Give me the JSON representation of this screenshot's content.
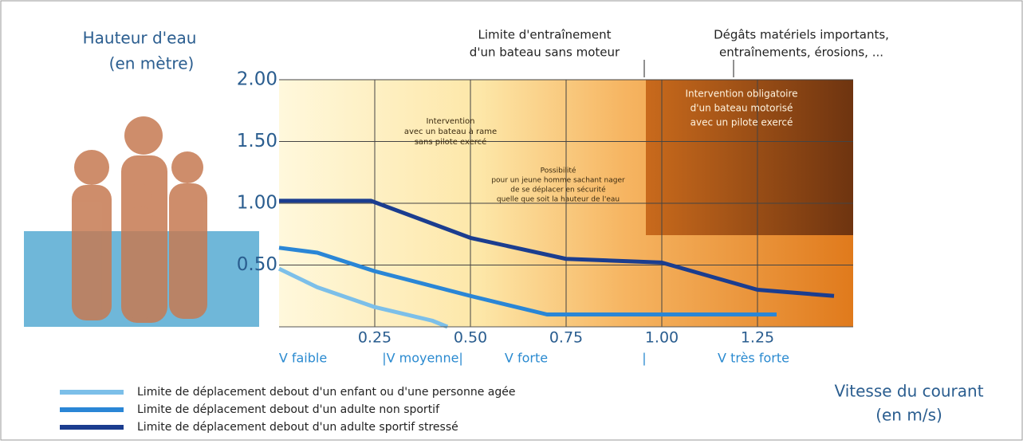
{
  "chart_data": {
    "type": "line",
    "y_label_lines": [
      "Hauteur d'eau",
      "(en mètre)"
    ],
    "x_label_lines": [
      "Vitesse du courant",
      "(en m/s)"
    ],
    "annotations": {
      "boat_limit": [
        "Limite d'entraînement",
        "d'un bateau sans moteur"
      ],
      "damage": [
        "Dégâts matériels importants,",
        "entraînements, érosions, ..."
      ],
      "rowboat": [
        "Intervention",
        "avec un bateau à rame",
        "sans pilote exercé"
      ],
      "swimmer": [
        "Possibilité",
        "pour un jeune homme sachant nager",
        "de se déplacer en sécurité",
        "quelle que soit la hauteur de l'eau"
      ],
      "motorboat": [
        "Intervention obligatoire",
        "d'un bateau motorisé",
        "avec un pilote exercé"
      ]
    },
    "speed_zones": [
      "V faible",
      "|V moyenne|",
      "V forte",
      "|",
      "V très forte"
    ],
    "xlim": [
      0,
      1.5
    ],
    "ylim": [
      0,
      2
    ],
    "xticks": [
      0.25,
      {
        "value": 0.5,
        "label": "0.50"
      },
      0.75,
      {
        "value": 1,
        "label": "1.00"
      },
      1.25
    ],
    "yticks": [
      {
        "value": 0.5,
        "label": "0.50"
      },
      {
        "value": 1,
        "label": "1.00"
      },
      {
        "value": 1.5,
        "label": "1.50"
      },
      {
        "value": 2,
        "label": "2.00"
      }
    ],
    "grid": true,
    "series": [
      {
        "name": "Limite de déplacement debout d'un enfant ou d'une personne agée",
        "color": "#7cbfe9",
        "x": [
          0,
          0.1,
          0.25,
          0.4,
          0.44
        ],
        "values": [
          0.47,
          0.32,
          0.16,
          0.05,
          0
        ]
      },
      {
        "name": "Limite de déplacement debout d'un adulte non sportif",
        "color": "#2a86d6",
        "x": [
          0,
          0.1,
          0.25,
          0.5,
          0.7,
          1.0,
          1.3
        ],
        "values": [
          0.64,
          0.6,
          0.45,
          0.25,
          0.1,
          0.1,
          0.1
        ]
      },
      {
        "name": "Limite de déplacement debout d'un adulte sportif stressé",
        "color": "#1b3d8f",
        "x": [
          0,
          0.24,
          0.5,
          0.75,
          1.0,
          1.25,
          1.45
        ],
        "values": [
          1.02,
          1.02,
          0.72,
          0.55,
          0.52,
          0.3,
          0.25
        ]
      }
    ]
  }
}
